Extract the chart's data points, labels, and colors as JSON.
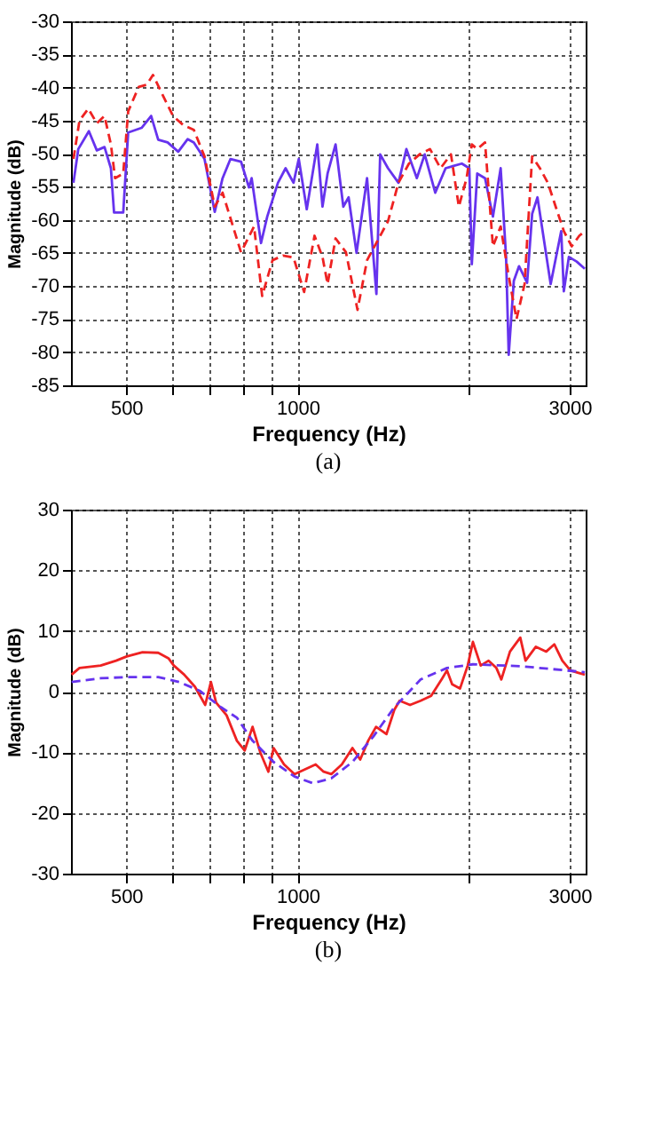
{
  "chart_data": [
    {
      "type": "line",
      "log": "x",
      "grid": true,
      "xlabel": "Frequency  (Hz)",
      "ylabel": "Magnitude (dB)",
      "annotations": [
        "(a)"
      ],
      "xlim": [
        400,
        3200
      ],
      "ylim": [
        -85,
        -30
      ],
      "xticks": [
        500,
        {
          "value": 600,
          "label": null
        },
        {
          "value": 700,
          "label": null
        },
        {
          "value": 800,
          "label": null
        },
        {
          "value": 900,
          "label": null
        },
        1000,
        {
          "value": 2000,
          "label": null
        },
        3000
      ],
      "yticks": [
        -85,
        -80,
        -75,
        -70,
        -65,
        -60,
        -55,
        -50,
        -45,
        -40,
        -35,
        -30
      ],
      "series": [
        {
          "color": "#6633ee",
          "line_style": "solid",
          "x": [
            404,
            412,
            430,
            444,
            458,
            470,
            476,
            494,
            504,
            532,
            553,
            569,
            591,
            617,
            641,
            657,
            686,
            715,
            738,
            762,
            795,
            821,
            830,
            862,
            884,
            923,
            952,
            983,
            1004,
            1037,
            1082,
            1105,
            1128,
            1165,
            1202,
            1228,
            1268,
            1323,
            1374,
            1395,
            1440,
            1502,
            1551,
            1618,
            1670,
            1743,
            1817,
            1940,
            2000,
            2020,
            2065,
            2131,
            2200,
            2270,
            2320,
            2345,
            2394,
            2445,
            2526,
            2578,
            2634,
            2778,
            2899,
            2930,
            2990,
            3086,
            3189
          ],
          "values": [
            -54.4,
            -49.3,
            -46.6,
            -49.5,
            -49,
            -52.2,
            -58.9,
            -58.9,
            -46.8,
            -46.1,
            -44.3,
            -47.9,
            -48.3,
            -49.7,
            -47.8,
            -48.3,
            -50.8,
            -58.8,
            -53.7,
            -50.8,
            -51.2,
            -55.1,
            -53.7,
            -63.5,
            -59.5,
            -54.4,
            -52.2,
            -54.4,
            -50.8,
            -58.4,
            -48.6,
            -58,
            -53,
            -48.6,
            -58,
            -56.6,
            -65,
            -53.7,
            -71.2,
            -50.1,
            -52.2,
            -54.4,
            -49.3,
            -53.7,
            -50.1,
            -55.9,
            -52.2,
            -51.5,
            -52.2,
            -66.7,
            -53,
            -53.7,
            -59.5,
            -52.2,
            -65.6,
            -80.4,
            -69.2,
            -67,
            -69.5,
            -59.1,
            -56.6,
            -69.7,
            -61.7,
            -70.8,
            -65.6,
            -66.3,
            -67.4
          ]
        },
        {
          "color": "#ee2222",
          "line_style": "dashed",
          "x": [
            404,
            414,
            429,
            444,
            458,
            470,
            478,
            494,
            504,
            526,
            543,
            557,
            576,
            604,
            630,
            657,
            686,
            715,
            738,
            795,
            838,
            866,
            903,
            942,
            983,
            1026,
            1070,
            1105,
            1128,
            1165,
            1215,
            1273,
            1323,
            1440,
            1502,
            1567,
            1636,
            1706,
            1780,
            1857,
            1917,
            1978,
            2020,
            2065,
            2131,
            2200,
            2270,
            2345,
            2420,
            2500,
            2578,
            2660,
            2746,
            2835,
            2930,
            3024,
            3119,
            3190
          ],
          "values": [
            -50.8,
            -45,
            -43.2,
            -45.4,
            -44.3,
            -48.6,
            -53.7,
            -53,
            -43.6,
            -39.9,
            -39.6,
            -38.1,
            -40.7,
            -44.3,
            -45.7,
            -46.4,
            -50.4,
            -58,
            -55.9,
            -64.9,
            -61,
            -71.5,
            -66.1,
            -65.4,
            -65.7,
            -70.9,
            -62.4,
            -65.6,
            -69.7,
            -62.8,
            -64.9,
            -73.6,
            -66.1,
            -60.2,
            -54.4,
            -51.5,
            -50.1,
            -49.3,
            -52.2,
            -50.1,
            -58,
            -53.7,
            -48.6,
            -49.3,
            -48.3,
            -64,
            -61,
            -68.5,
            -75,
            -69.7,
            -50.4,
            -52.2,
            -54.4,
            -58,
            -61.7,
            -64,
            -62.4,
            -61.7
          ]
        }
      ]
    },
    {
      "type": "line",
      "log": "x",
      "grid": true,
      "xlabel": "Frequency  (Hz)",
      "ylabel": "Magnitude (dB)",
      "annotations": [
        "(b)"
      ],
      "xlim": [
        400,
        3200
      ],
      "ylim": [
        -30,
        30
      ],
      "xticks": [
        500,
        {
          "value": 600,
          "label": null
        },
        {
          "value": 700,
          "label": null
        },
        {
          "value": 800,
          "label": null
        },
        {
          "value": 900,
          "label": null
        },
        1000,
        {
          "value": 2000,
          "label": null
        },
        3000
      ],
      "yticks": [
        -30,
        -20,
        -10,
        0,
        10,
        20,
        30
      ],
      "series": [
        {
          "color": "#ee2222",
          "line_style": "solid",
          "x": [
            401,
            414,
            451,
            480,
            501,
            534,
            569,
            593,
            606,
            632,
            660,
            688,
            704,
            719,
            750,
            782,
            807,
            833,
            860,
            888,
            907,
            946,
            987,
            1030,
            1075,
            1110,
            1145,
            1195,
            1247,
            1287,
            1329,
            1372,
            1431,
            1477,
            1509,
            1574,
            1643,
            1714,
            1788,
            1827,
            1866,
            1926,
            1987,
            2029,
            2094,
            2162,
            2231,
            2276,
            2357,
            2457,
            2510,
            2617,
            2729,
            2819,
            2912,
            3008,
            3108,
            3190
          ],
          "values": [
            2.8,
            3.9,
            4.3,
            5.1,
            5.8,
            6.5,
            6.4,
            5.5,
            4.3,
            2.8,
            0.8,
            -2.2,
            1.6,
            -1.8,
            -3.9,
            -8.1,
            -9.7,
            -5.8,
            -10.1,
            -13.2,
            -9.3,
            -12,
            -13.6,
            -12.8,
            -12,
            -13.2,
            -13.6,
            -12,
            -9.3,
            -11.2,
            -8.1,
            -5.8,
            -7,
            -3,
            -1.5,
            -2.2,
            -1.5,
            -0.7,
            2,
            3.5,
            1.2,
            0.5,
            4.3,
            8.2,
            4.3,
            5.1,
            3.9,
            2,
            6.6,
            8.9,
            5.1,
            7.4,
            6.6,
            7.8,
            5.1,
            3.5,
            3.1,
            2.8
          ]
        },
        {
          "color": "#6633ee",
          "line_style": "dashed",
          "x": [
            401,
            451,
            501,
            569,
            619,
            674,
            734,
            782,
            833,
            907,
            987,
            1063,
            1145,
            1247,
            1357,
            1477,
            1643,
            1827,
            2029,
            2457,
            3034,
            3190
          ],
          "values": [
            1.6,
            2.2,
            2.4,
            2.4,
            1.6,
            0.1,
            -2.6,
            -4.3,
            -8.1,
            -11.6,
            -14,
            -15.1,
            -14.3,
            -11.6,
            -7.4,
            -2.6,
            2,
            3.9,
            4.5,
            4.2,
            3.4,
            3.2
          ]
        }
      ]
    }
  ]
}
